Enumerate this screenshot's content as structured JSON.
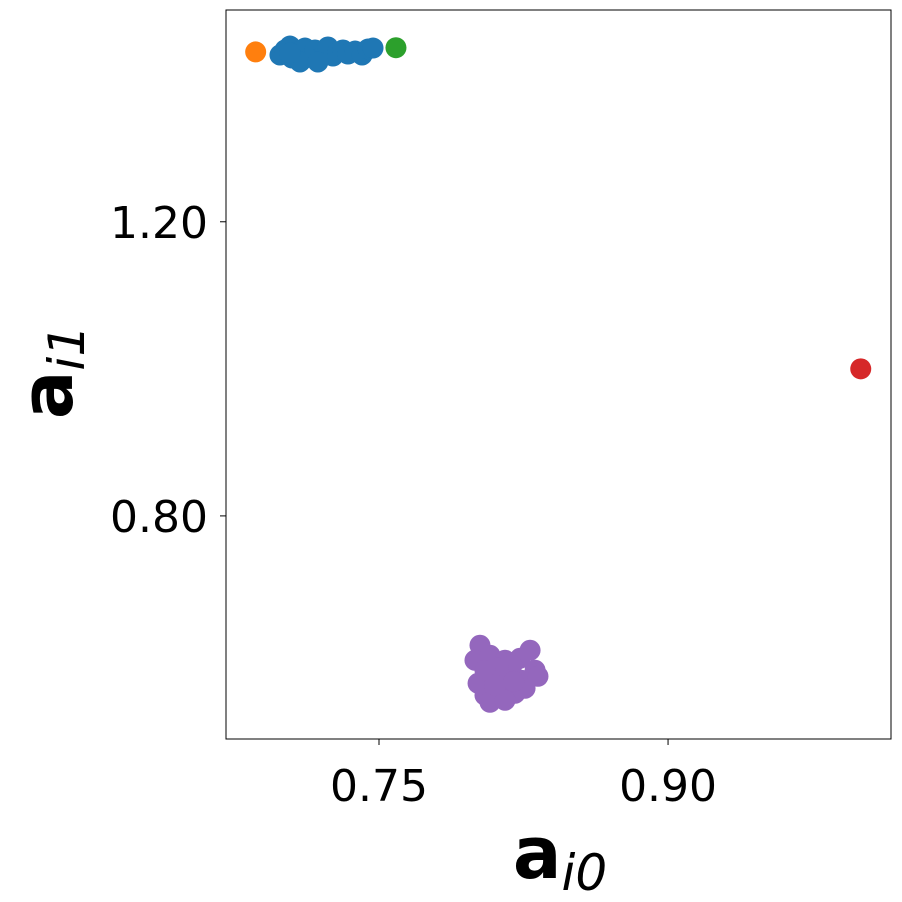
{
  "chart_data": {
    "type": "scatter",
    "title": "",
    "xlabel": {
      "base": "a",
      "sub": "i0"
    },
    "ylabel": {
      "base": "a",
      "sub": "i1"
    },
    "xlim": [
      0.6706,
      1.0157
    ],
    "ylim": [
      0.4966,
      1.488
    ],
    "xticks": [
      {
        "value": 0.75,
        "label": "0.75"
      },
      {
        "value": 0.9,
        "label": "0.90"
      }
    ],
    "yticks": [
      {
        "value": 1.2,
        "label": "1.20"
      },
      {
        "value": 0.8,
        "label": "0.80"
      }
    ],
    "grid": false,
    "series": [
      {
        "color": "#1f77b4",
        "points": [
          [
            0.6986,
            1.4268
          ],
          [
            0.7012,
            1.4336
          ],
          [
            0.7038,
            1.439
          ],
          [
            0.7049,
            1.4227
          ],
          [
            0.708,
            1.4309
          ],
          [
            0.71,
            1.42
          ],
          [
            0.7116,
            1.4363
          ],
          [
            0.7142,
            1.4268
          ],
          [
            0.7168,
            1.4336
          ],
          [
            0.7194,
            1.4227
          ],
          [
            0.722,
            1.4309
          ],
          [
            0.7235,
            1.4377
          ],
          [
            0.7261,
            1.4254
          ],
          [
            0.7287,
            1.4309
          ],
          [
            0.7313,
            1.4336
          ],
          [
            0.7339,
            1.4281
          ],
          [
            0.7376,
            1.4322
          ],
          [
            0.7412,
            1.4268
          ],
          [
            0.7443,
            1.4349
          ],
          [
            0.7469,
            1.4363
          ],
          [
            0.709,
            1.4173
          ],
          [
            0.7183,
            1.4173
          ],
          [
            0.7038,
            1.4295
          ]
        ]
      },
      {
        "color": "#ff7f0e",
        "points": [
          [
            0.686,
            1.431
          ]
        ]
      },
      {
        "color": "#2ca02c",
        "points": [
          [
            0.7588,
            1.4367
          ]
        ]
      },
      {
        "color": "#d62728",
        "points": [
          [
            1.0,
            1.0
          ]
        ]
      },
      {
        "color": "#9467bd",
        "points": [
          [
            0.8024,
            0.6241
          ],
          [
            0.8284,
            0.6173
          ],
          [
            0.7998,
            0.6037
          ],
          [
            0.8076,
            0.6105
          ],
          [
            0.8154,
            0.6037
          ],
          [
            0.8232,
            0.6064
          ],
          [
            0.831,
            0.5901
          ],
          [
            0.8014,
            0.5724
          ],
          [
            0.8087,
            0.5833
          ],
          [
            0.817,
            0.5873
          ],
          [
            0.8242,
            0.5764
          ],
          [
            0.8325,
            0.5819
          ],
          [
            0.805,
            0.5561
          ],
          [
            0.8128,
            0.5629
          ],
          [
            0.8206,
            0.5588
          ],
          [
            0.8076,
            0.5465
          ],
          [
            0.8154,
            0.5493
          ],
          [
            0.8258,
            0.5656
          ],
          [
            0.819,
            0.5969
          ],
          [
            0.8118,
            0.5928
          ],
          [
            0.805,
            0.59
          ],
          [
            0.82,
            0.575
          ],
          [
            0.81,
            0.57
          ]
        ]
      }
    ]
  }
}
